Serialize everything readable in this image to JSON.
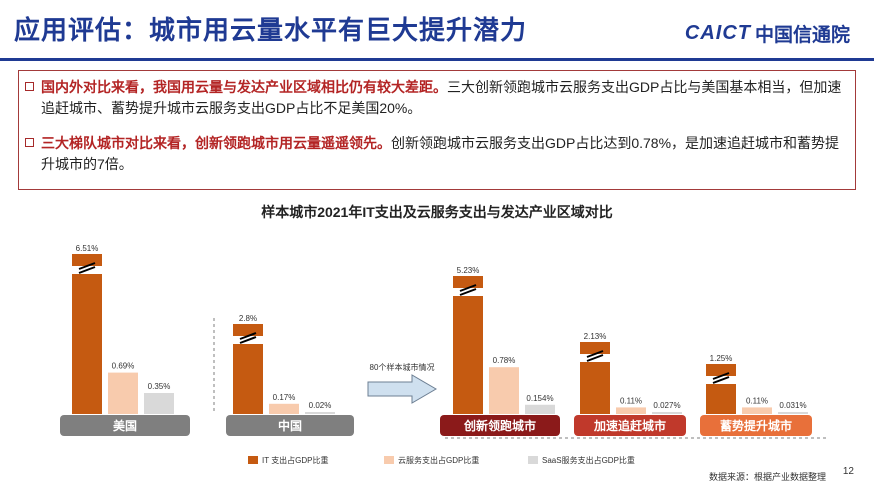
{
  "header": {
    "title": "应用评估：城市用云量水平有巨大提升潜力",
    "logo_en": "CAICT",
    "logo_cn": "中国信通院"
  },
  "bullets": [
    {
      "highlight": "国内外对比来看，我国用云量与发达产业区域相比仍有较大差距。",
      "text": "三大创新领跑城市云服务支出GDP占比与美国基本相当，但加速追赶城市、蓄势提升城市云服务支出GDP占比不足美国20%。"
    },
    {
      "highlight": "三大梯队城市对比来看，创新领跑城市用云量遥遥领先。",
      "text": "创新领跑城市云服务支出GDP占比达到0.78%，是加速追赶城市和蓄势提升城市的7倍。"
    }
  ],
  "chart_data": {
    "type": "bar",
    "title": "样本城市2021年IT支出及云服务支出与发达产业区域对比",
    "categories": [
      "美国",
      "中国",
      "创新领跑城市",
      "加速追赶城市",
      "蓄势提升城市"
    ],
    "series": [
      {
        "name": "IT 支出占GDP比重",
        "color": "#c55a11",
        "values": [
          6.51,
          2.8,
          5.23,
          2.13,
          1.25
        ],
        "labels": [
          "6.51%",
          "2.8%",
          "5.23%",
          "2.13%",
          "1.25%"
        ]
      },
      {
        "name": "云服务支出占GDP比重",
        "color": "#f8cbad",
        "values": [
          0.69,
          0.17,
          0.78,
          0.11,
          0.11
        ],
        "labels": [
          "0.69%",
          "0.17%",
          "0.78%",
          "0.11%",
          "0.11%"
        ]
      },
      {
        "name": "SaaS服务支出占GDP比重",
        "color": "#d9d9d9",
        "values": [
          0.35,
          0.02,
          0.154,
          0.027,
          0.031
        ],
        "labels": [
          "0.35%",
          "0.02%",
          "0.154%",
          "0.027%",
          "0.031%"
        ]
      }
    ],
    "category_colors": [
      "#7f7f7f",
      "#7f7f7f",
      "#8b1a1a",
      "#c0392b",
      "#e8703a"
    ],
    "axis_break": true,
    "legend_position": "bottom",
    "arrow_label": "80个样本城市情况"
  },
  "footer": {
    "source": "数据来源：根据产业数据整理",
    "page": "12"
  }
}
